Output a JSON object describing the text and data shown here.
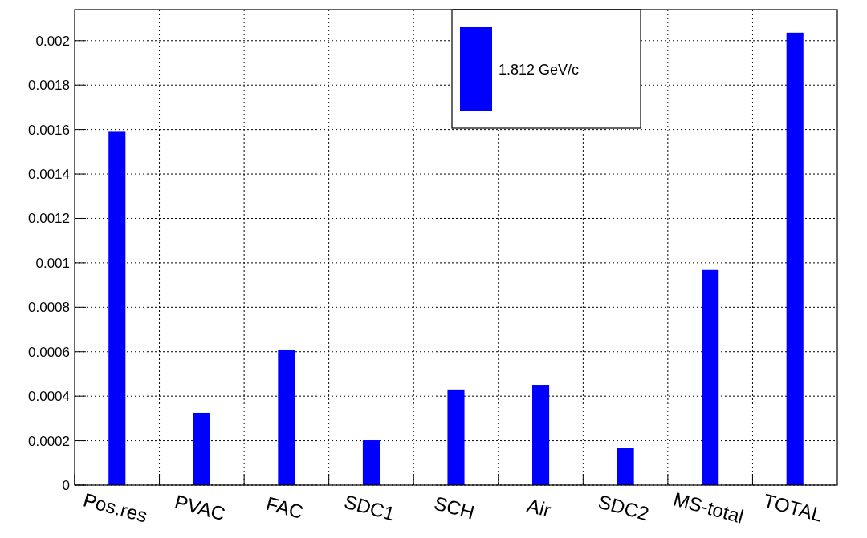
{
  "chart_data": {
    "type": "bar",
    "categories": [
      "Pos.res",
      "PVAC",
      "FAC",
      "SDC1",
      "SCH",
      "Air",
      "SDC2",
      "MS-total",
      "TOTAL"
    ],
    "series": [
      {
        "name": "1.812 GeV/c",
        "color": "#0000ff",
        "values": [
          0.00159,
          0.000325,
          0.00061,
          0.000202,
          0.00043,
          0.000451,
          0.000166,
          0.000968,
          0.002036
        ]
      }
    ],
    "ylim": [
      0,
      0.00214
    ],
    "yticks": [
      0,
      0.0002,
      0.0004,
      0.0006,
      0.0008,
      0.001,
      0.0012,
      0.0014,
      0.0016,
      0.0018,
      0.002
    ],
    "grid": true,
    "legend": "top"
  }
}
